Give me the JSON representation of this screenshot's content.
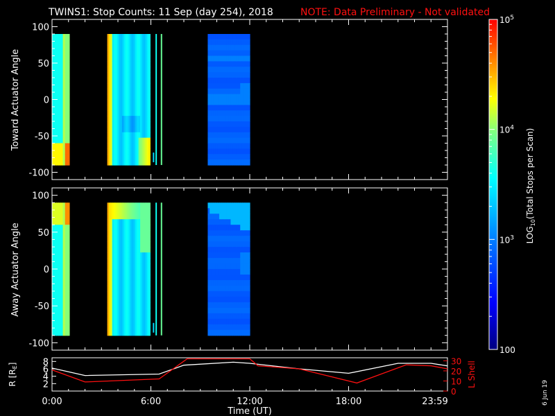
{
  "title": "TWINS1: Stop Counts: 11 Sep (day 254), 2018",
  "note": "NOTE: Data Preliminary - Not validated",
  "date_stamp": "6 Jun 19",
  "colors": {
    "background": "#000000",
    "text": "#ffffff",
    "note": "#ff0000",
    "r_line": "#ffffff",
    "lshell_line": "#ff0000"
  },
  "panels": [
    {
      "ylabel": "Toward Actuator Angle",
      "yticks": [
        "100",
        "50",
        "0",
        "-50",
        "-100"
      ]
    },
    {
      "ylabel": "Away Actuator Angle",
      "yticks": [
        "100",
        "50",
        "0",
        "-50",
        "-100"
      ]
    }
  ],
  "colorbar": {
    "label": "LOG10(Total Stops per Scan)",
    "label_main": "LOG",
    "label_sub": "10",
    "label_rest": "(Total Stops per Scan)",
    "scale": "log",
    "range": [
      100,
      100000
    ],
    "tick_labels": [
      {
        "base": "10",
        "exp": "5"
      },
      {
        "base": "10",
        "exp": "4"
      },
      {
        "base": "10",
        "exp": "3"
      },
      {
        "base": "100",
        "exp": ""
      }
    ]
  },
  "bottom": {
    "left_label": "R [R",
    "left_label_sub": "E",
    "left_label_end": "]",
    "left_ticks": [
      "8",
      "6",
      "4",
      "2"
    ],
    "right_label": "L Shell",
    "right_ticks": [
      "30",
      "20",
      "10",
      "0"
    ],
    "xticks": [
      "0:00",
      "6:00",
      "12:00",
      "18:00",
      "23:59"
    ],
    "xlabel": "Time (UT)"
  },
  "chart_data": {
    "type": "heatmap",
    "x_unit": "hours UT",
    "xlim": [
      0,
      24
    ],
    "ylim": [
      -110,
      110
    ],
    "angle_range_data": [
      -90,
      90
    ],
    "data_intervals_hours": [
      [
        0.0,
        1.05
      ],
      [
        3.35,
        5.95
      ],
      [
        6.28,
        6.32
      ],
      [
        6.6,
        6.62
      ],
      [
        9.45,
        12.0
      ]
    ],
    "note_intervals": "approximate times (hours) where spectrogram data is present; log10 counts range ~2.3-4.8",
    "R_Re": {
      "x": [
        0,
        2,
        6.5,
        8,
        11,
        12,
        15,
        18,
        21,
        23,
        24
      ],
      "y": [
        6.2,
        4.2,
        4.6,
        7,
        7.8,
        7.5,
        6,
        4.8,
        7.5,
        7.5,
        6.8
      ]
    },
    "L_shell": {
      "x": [
        0,
        2,
        6.5,
        8.2,
        12,
        12.5,
        15,
        18.5,
        21.5,
        23,
        24
      ],
      "y": [
        21,
        9,
        12,
        32,
        32,
        25,
        22,
        8,
        26,
        25,
        22
      ]
    }
  }
}
